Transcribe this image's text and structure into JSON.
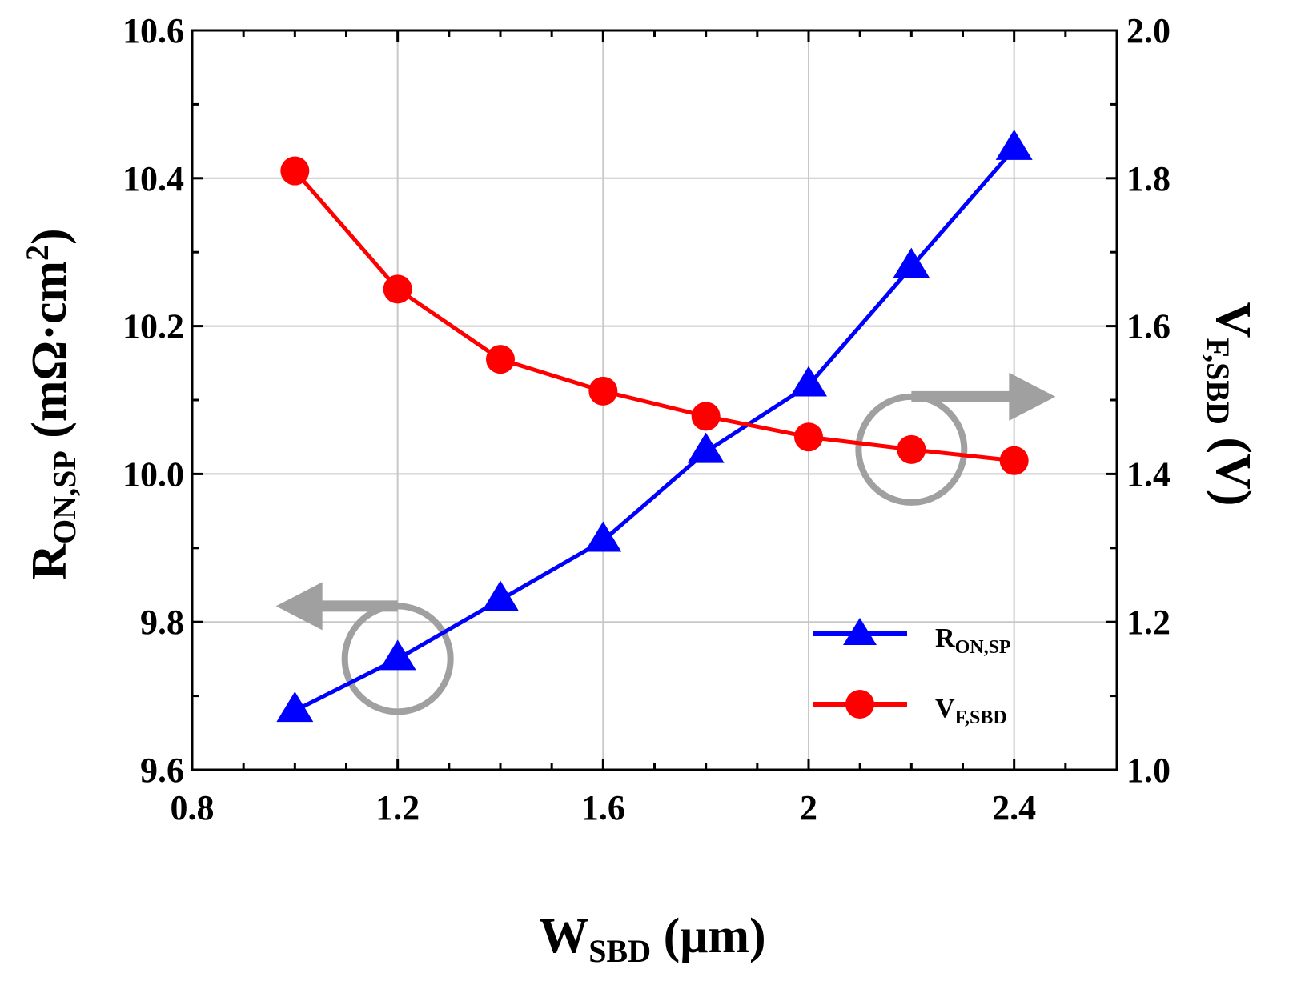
{
  "chart_data": {
    "type": "line",
    "title": "",
    "x": [
      1.0,
      1.2,
      1.4,
      1.6,
      1.8,
      2.0,
      2.2,
      2.4
    ],
    "xlabel": {
      "main": "W",
      "sub": "SBD",
      "unit": " (μm)"
    },
    "ylabel_left": {
      "main": "R",
      "sub": "ON,SP",
      "unit": " (mΩ·cm",
      "sup": "2",
      "close": ")"
    },
    "ylabel_right": {
      "main": "V",
      "sub": "F,SBD",
      "unit": " (V)"
    },
    "xlim": [
      0.8,
      2.6
    ],
    "ylim_left": [
      9.6,
      10.6
    ],
    "ylim_right": [
      1.0,
      2.0
    ],
    "xticks": [
      "0.8",
      "1.2",
      "1.6",
      "2",
      "2.4"
    ],
    "xtick_values": [
      0.8,
      1.2,
      1.6,
      2.0,
      2.4
    ],
    "yticks_left": [
      "9.6",
      "9.8",
      "10.0",
      "10.2",
      "10.4",
      "10.6"
    ],
    "ytick_values_left": [
      9.6,
      9.8,
      10.0,
      10.2,
      10.4,
      10.6
    ],
    "yticks_right": [
      "1.0",
      "1.2",
      "1.4",
      "1.6",
      "1.8",
      "2.0"
    ],
    "ytick_values_right": [
      1.0,
      1.2,
      1.4,
      1.6,
      1.8,
      2.0
    ],
    "grid": true,
    "series": [
      {
        "name": "R",
        "name_sub": "ON,SP",
        "axis": "left",
        "marker": "triangle",
        "color": "#0000ff",
        "values": [
          9.68,
          9.75,
          9.83,
          9.91,
          10.03,
          10.12,
          10.28,
          10.44
        ]
      },
      {
        "name": "V",
        "name_sub": "F,SBD",
        "axis": "right",
        "marker": "circle",
        "color": "#ff0000",
        "values": [
          1.81,
          1.65,
          1.555,
          1.512,
          1.478,
          1.45,
          1.433,
          1.418
        ]
      }
    ],
    "annotations": [
      {
        "type": "circle-arrow",
        "target_series": "R",
        "x": 1.2,
        "arrow_direction": "left",
        "color": "#a0a0a0"
      },
      {
        "type": "circle-arrow",
        "target_series": "V",
        "x": 2.2,
        "arrow_direction": "right",
        "color": "#a0a0a0"
      }
    ],
    "legend_position": "bottom-right"
  }
}
